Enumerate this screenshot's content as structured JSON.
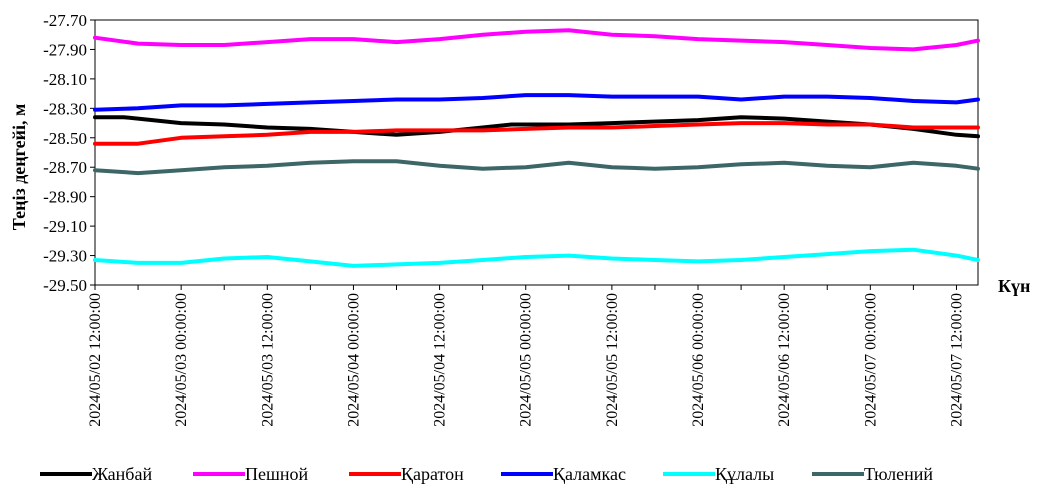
{
  "chart_data": {
    "type": "line",
    "title": "",
    "xlabel": "Күн",
    "ylabel": "Теңіз деңгейі, м",
    "ylim": [
      -29.5,
      -27.7
    ],
    "y_ticks": [
      "-27.70",
      "-27.90",
      "-28.10",
      "-28.30",
      "-28.50",
      "-28.70",
      "-28.90",
      "-29.10",
      "-29.30",
      "-29.50"
    ],
    "x_hours": [
      0,
      12,
      24,
      36,
      48,
      60,
      72,
      84,
      96,
      108,
      120
    ],
    "x_tick_labels": [
      "2024/05/02 12:00:00",
      "2024/05/03 00:00:00",
      "2024/05/03 12:00:00",
      "2024/05/04 00:00:00",
      "2024/05/04 12:00:00",
      "2024/05/05 00:00:00",
      "2024/05/05 12:00:00",
      "2024/05/06 00:00:00",
      "2024/05/06 12:00:00",
      "2024/05/07 00:00:00",
      "2024/05/07 12:00:00"
    ],
    "grid": false,
    "legend_position": "bottom",
    "series": [
      {
        "name": "Жанбай",
        "color": "#000000",
        "points": [
          [
            0,
            -28.36
          ],
          [
            4,
            -28.36
          ],
          [
            8,
            -28.38
          ],
          [
            12,
            -28.4
          ],
          [
            18,
            -28.41
          ],
          [
            24,
            -28.43
          ],
          [
            30,
            -28.44
          ],
          [
            36,
            -28.46
          ],
          [
            42,
            -28.48
          ],
          [
            48,
            -28.46
          ],
          [
            54,
            -28.43
          ],
          [
            58,
            -28.41
          ],
          [
            66,
            -28.41
          ],
          [
            72,
            -28.4
          ],
          [
            84,
            -28.38
          ],
          [
            90,
            -28.36
          ],
          [
            96,
            -28.37
          ],
          [
            102,
            -28.39
          ],
          [
            108,
            -28.41
          ],
          [
            114,
            -28.44
          ],
          [
            120,
            -28.48
          ],
          [
            123,
            -28.49
          ]
        ]
      },
      {
        "name": "Пешной",
        "color": "#ff00ff",
        "points": [
          [
            0,
            -27.82
          ],
          [
            6,
            -27.86
          ],
          [
            12,
            -27.87
          ],
          [
            18,
            -27.87
          ],
          [
            24,
            -27.85
          ],
          [
            30,
            -27.83
          ],
          [
            36,
            -27.83
          ],
          [
            42,
            -27.85
          ],
          [
            48,
            -27.83
          ],
          [
            54,
            -27.8
          ],
          [
            60,
            -27.78
          ],
          [
            66,
            -27.77
          ],
          [
            72,
            -27.8
          ],
          [
            78,
            -27.81
          ],
          [
            84,
            -27.83
          ],
          [
            90,
            -27.84
          ],
          [
            96,
            -27.85
          ],
          [
            102,
            -27.87
          ],
          [
            108,
            -27.89
          ],
          [
            114,
            -27.9
          ],
          [
            120,
            -27.87
          ],
          [
            123,
            -27.84
          ]
        ]
      },
      {
        "name": "Қаратон",
        "color": "#ff0000",
        "points": [
          [
            0,
            -28.54
          ],
          [
            6,
            -28.54
          ],
          [
            12,
            -28.5
          ],
          [
            18,
            -28.49
          ],
          [
            24,
            -28.48
          ],
          [
            30,
            -28.46
          ],
          [
            36,
            -28.46
          ],
          [
            42,
            -28.45
          ],
          [
            48,
            -28.45
          ],
          [
            54,
            -28.45
          ],
          [
            60,
            -28.44
          ],
          [
            66,
            -28.43
          ],
          [
            72,
            -28.43
          ],
          [
            78,
            -28.42
          ],
          [
            84,
            -28.41
          ],
          [
            90,
            -28.4
          ],
          [
            96,
            -28.4
          ],
          [
            102,
            -28.41
          ],
          [
            108,
            -28.41
          ],
          [
            114,
            -28.43
          ],
          [
            120,
            -28.43
          ],
          [
            123,
            -28.43
          ]
        ]
      },
      {
        "name": "Қаламкас",
        "color": "#0000ff",
        "points": [
          [
            0,
            -28.31
          ],
          [
            6,
            -28.3
          ],
          [
            12,
            -28.28
          ],
          [
            18,
            -28.28
          ],
          [
            24,
            -28.27
          ],
          [
            30,
            -28.26
          ],
          [
            36,
            -28.25
          ],
          [
            42,
            -28.24
          ],
          [
            48,
            -28.24
          ],
          [
            54,
            -28.23
          ],
          [
            60,
            -28.21
          ],
          [
            66,
            -28.21
          ],
          [
            72,
            -28.22
          ],
          [
            78,
            -28.22
          ],
          [
            84,
            -28.22
          ],
          [
            90,
            -28.24
          ],
          [
            96,
            -28.22
          ],
          [
            102,
            -28.22
          ],
          [
            108,
            -28.23
          ],
          [
            114,
            -28.25
          ],
          [
            120,
            -28.26
          ],
          [
            123,
            -28.24
          ]
        ]
      },
      {
        "name": "Құлалы",
        "color": "#00ffff",
        "points": [
          [
            0,
            -29.33
          ],
          [
            6,
            -29.35
          ],
          [
            12,
            -29.35
          ],
          [
            18,
            -29.32
          ],
          [
            24,
            -29.31
          ],
          [
            30,
            -29.34
          ],
          [
            36,
            -29.37
          ],
          [
            42,
            -29.36
          ],
          [
            48,
            -29.35
          ],
          [
            54,
            -29.33
          ],
          [
            60,
            -29.31
          ],
          [
            66,
            -29.3
          ],
          [
            72,
            -29.32
          ],
          [
            78,
            -29.33
          ],
          [
            84,
            -29.34
          ],
          [
            90,
            -29.33
          ],
          [
            96,
            -29.31
          ],
          [
            102,
            -29.29
          ],
          [
            108,
            -29.27
          ],
          [
            114,
            -29.26
          ],
          [
            120,
            -29.3
          ],
          [
            123,
            -29.33
          ]
        ]
      },
      {
        "name": "Тюлений",
        "color": "#3d6666",
        "points": [
          [
            0,
            -28.72
          ],
          [
            6,
            -28.74
          ],
          [
            12,
            -28.72
          ],
          [
            18,
            -28.7
          ],
          [
            24,
            -28.69
          ],
          [
            30,
            -28.67
          ],
          [
            36,
            -28.66
          ],
          [
            42,
            -28.66
          ],
          [
            48,
            -28.69
          ],
          [
            54,
            -28.71
          ],
          [
            60,
            -28.7
          ],
          [
            66,
            -28.67
          ],
          [
            72,
            -28.7
          ],
          [
            78,
            -28.71
          ],
          [
            84,
            -28.7
          ],
          [
            90,
            -28.68
          ],
          [
            96,
            -28.67
          ],
          [
            102,
            -28.69
          ],
          [
            108,
            -28.7
          ],
          [
            114,
            -28.67
          ],
          [
            120,
            -28.69
          ],
          [
            123,
            -28.71
          ]
        ]
      }
    ]
  }
}
